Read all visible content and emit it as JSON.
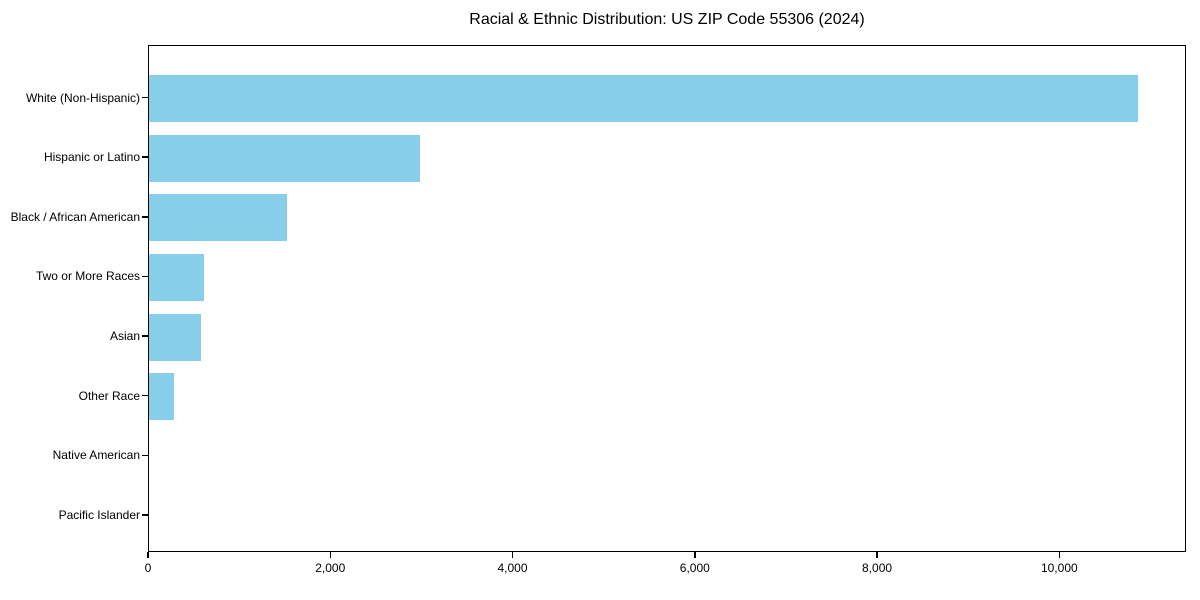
{
  "chart_data": {
    "type": "bar",
    "orientation": "horizontal",
    "title": "Racial & Ethnic Distribution: US ZIP Code 55306 (2024)",
    "categories": [
      "White (Non-Hispanic)",
      "Hispanic or Latino",
      "Black / African American",
      "Two or More Races",
      "Asian",
      "Other Race",
      "Native American",
      "Pacific Islander"
    ],
    "values": [
      10850,
      2970,
      1510,
      600,
      575,
      270,
      0,
      0
    ],
    "xlabel": "",
    "ylabel": "",
    "xlim": [
      0,
      11390
    ],
    "xticks": [
      {
        "value": 0,
        "label": "0"
      },
      {
        "value": 2000,
        "label": "2,000"
      },
      {
        "value": 4000,
        "label": "4,000"
      },
      {
        "value": 6000,
        "label": "6,000"
      },
      {
        "value": 8000,
        "label": "8,000"
      },
      {
        "value": 10000,
        "label": "10,000"
      }
    ],
    "grid": false,
    "legend": false,
    "bar_color": "#87CEEB",
    "axis_color": "#000000",
    "background_color": "#ffffff"
  }
}
